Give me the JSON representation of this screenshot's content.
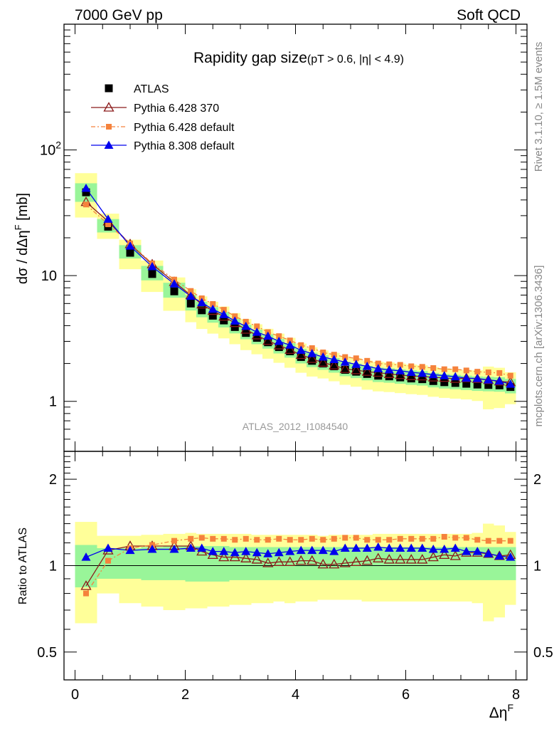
{
  "header": {
    "left": "7000 GeV pp",
    "right": "Soft QCD"
  },
  "side_text": {
    "rivet": "Rivet 3.1.10, ≥ 1.5M events",
    "mcplots": "mcplots.cern.ch [arXiv:1306.3436]"
  },
  "colors": {
    "atlas": "#000000",
    "py6_370": "#8b1a1a",
    "py6_default": "#f5823c",
    "py8": "#0000ee",
    "band_inner": "#99f599",
    "band_outer": "#ffff99"
  },
  "chart_data": {
    "type": "line",
    "title": "Rapidity gap size",
    "title_cuts": "(pT > 0.6, |η| < 4.9)",
    "watermark": "ATLAS_2012_I1084540",
    "xlabel": "Δη",
    "xlabel_sup": "F",
    "ylabel": "dσ / dΔη",
    "ylabel_sup": "F",
    "ylabel_unit": " [mb]",
    "ratio_ylabel": "Ratio to ATLAS",
    "xlim": [
      -0.2,
      8.2
    ],
    "ylim": [
      0.4,
      1000
    ],
    "yscale": "log",
    "ratio_ylim": [
      0.4,
      2.5
    ],
    "ratio_yscale": "log",
    "x_ticks": [
      0,
      2,
      4,
      6,
      8
    ],
    "y_ticks": [
      {
        "v": 1,
        "label": "1"
      },
      {
        "v": 10,
        "label": "10"
      },
      {
        "v": 100,
        "label": "10",
        "sup": "2"
      }
    ],
    "ratio_ticks": [
      {
        "v": 0.5,
        "label": "0.5"
      },
      {
        "v": 1,
        "label": "1"
      },
      {
        "v": 2,
        "label": "2"
      }
    ],
    "legend_position": "top-left",
    "x": [
      0.2,
      0.6,
      1.0,
      1.4,
      1.8,
      2.1,
      2.3,
      2.5,
      2.7,
      2.9,
      3.1,
      3.3,
      3.5,
      3.7,
      3.9,
      4.1,
      4.3,
      4.5,
      4.7,
      4.9,
      5.1,
      5.3,
      5.5,
      5.7,
      5.9,
      6.1,
      6.3,
      6.5,
      6.7,
      6.9,
      7.1,
      7.3,
      7.5,
      7.7,
      7.9
    ],
    "bin_edges": [
      0.0,
      0.4,
      0.8,
      1.2,
      1.6,
      2.0,
      2.2,
      2.4,
      2.6,
      2.8,
      3.0,
      3.2,
      3.4,
      3.6,
      3.8,
      4.0,
      4.2,
      4.4,
      4.6,
      4.8,
      5.0,
      5.2,
      5.4,
      5.6,
      5.8,
      6.0,
      6.2,
      6.4,
      6.6,
      6.8,
      7.0,
      7.2,
      7.4,
      7.6,
      7.8,
      8.0
    ],
    "series": [
      {
        "name": "ATLAS",
        "marker": "square",
        "values": [
          46,
          24.5,
          15.2,
          10.3,
          7.5,
          6.0,
          5.3,
          4.8,
          4.4,
          3.9,
          3.5,
          3.2,
          2.95,
          2.7,
          2.5,
          2.25,
          2.1,
          2.0,
          1.9,
          1.78,
          1.72,
          1.65,
          1.6,
          1.58,
          1.55,
          1.52,
          1.5,
          1.45,
          1.42,
          1.4,
          1.38,
          1.36,
          1.35,
          1.34,
          1.3
        ],
        "band_inner": [
          [
            0.84,
            1.18
          ],
          [
            0.9,
            1.15
          ],
          [
            0.9,
            1.15
          ],
          [
            0.89,
            1.16
          ],
          [
            0.89,
            1.17
          ],
          [
            0.88,
            1.17
          ],
          [
            0.88,
            1.17
          ],
          [
            0.88,
            1.17
          ],
          [
            0.88,
            1.17
          ],
          [
            0.89,
            1.16
          ],
          [
            0.89,
            1.16
          ],
          [
            0.89,
            1.16
          ],
          [
            0.89,
            1.16
          ],
          [
            0.89,
            1.16
          ],
          [
            0.89,
            1.16
          ],
          [
            0.89,
            1.16
          ],
          [
            0.89,
            1.16
          ],
          [
            0.89,
            1.16
          ],
          [
            0.89,
            1.16
          ],
          [
            0.89,
            1.16
          ],
          [
            0.89,
            1.16
          ],
          [
            0.89,
            1.16
          ],
          [
            0.89,
            1.16
          ],
          [
            0.89,
            1.16
          ],
          [
            0.89,
            1.16
          ],
          [
            0.89,
            1.16
          ],
          [
            0.89,
            1.16
          ],
          [
            0.89,
            1.16
          ],
          [
            0.89,
            1.16
          ],
          [
            0.89,
            1.16
          ],
          [
            0.89,
            1.16
          ],
          [
            0.89,
            1.16
          ],
          [
            0.89,
            1.16
          ],
          [
            0.89,
            1.16
          ],
          [
            0.89,
            1.16
          ]
        ],
        "band_outer": [
          [
            0.63,
            1.42
          ],
          [
            0.8,
            1.27
          ],
          [
            0.74,
            1.27
          ],
          [
            0.72,
            1.28
          ],
          [
            0.7,
            1.29
          ],
          [
            0.71,
            1.3
          ],
          [
            0.71,
            1.29
          ],
          [
            0.72,
            1.29
          ],
          [
            0.72,
            1.29
          ],
          [
            0.73,
            1.29
          ],
          [
            0.73,
            1.29
          ],
          [
            0.74,
            1.28
          ],
          [
            0.74,
            1.28
          ],
          [
            0.75,
            1.28
          ],
          [
            0.74,
            1.28
          ],
          [
            0.75,
            1.28
          ],
          [
            0.75,
            1.28
          ],
          [
            0.76,
            1.27
          ],
          [
            0.76,
            1.28
          ],
          [
            0.76,
            1.28
          ],
          [
            0.76,
            1.28
          ],
          [
            0.75,
            1.28
          ],
          [
            0.75,
            1.29
          ],
          [
            0.75,
            1.29
          ],
          [
            0.75,
            1.29
          ],
          [
            0.75,
            1.29
          ],
          [
            0.75,
            1.29
          ],
          [
            0.75,
            1.29
          ],
          [
            0.75,
            1.29
          ],
          [
            0.75,
            1.29
          ],
          [
            0.75,
            1.29
          ],
          [
            0.74,
            1.3
          ],
          [
            0.64,
            1.4
          ],
          [
            0.66,
            1.38
          ],
          [
            0.73,
            1.31
          ]
        ]
      },
      {
        "name": "Pythia 6.428 370",
        "marker": "open-triangle",
        "values": [
          38.5,
          27.0,
          17.8,
          12.3,
          8.9,
          7.0,
          5.9,
          5.25,
          4.72,
          4.2,
          3.72,
          3.35,
          3.03,
          2.79,
          2.57,
          2.34,
          2.18,
          2.03,
          1.93,
          1.81,
          1.77,
          1.72,
          1.69,
          1.65,
          1.62,
          1.59,
          1.58,
          1.55,
          1.54,
          1.51,
          1.53,
          1.51,
          1.48,
          1.44,
          1.42
        ],
        "ratio": [
          0.85,
          1.13,
          1.17,
          1.17,
          1.17,
          1.17,
          1.12,
          1.09,
          1.07,
          1.07,
          1.06,
          1.05,
          1.02,
          1.03,
          1.03,
          1.04,
          1.04,
          1.01,
          1.01,
          1.02,
          1.03,
          1.04,
          1.06,
          1.05,
          1.05,
          1.05,
          1.05,
          1.07,
          1.09,
          1.08,
          1.11,
          1.11,
          1.1,
          1.08,
          1.09
        ]
      },
      {
        "name": "Pythia 6.428 default",
        "marker": "filled-square-small",
        "values": [
          36.8,
          25.6,
          18.0,
          12.5,
          9.3,
          7.55,
          6.6,
          5.95,
          5.35,
          4.75,
          4.3,
          3.95,
          3.55,
          3.3,
          3.05,
          2.8,
          2.65,
          2.45,
          2.35,
          2.25,
          2.2,
          2.1,
          2.0,
          1.97,
          1.95,
          1.9,
          1.88,
          1.84,
          1.8,
          1.8,
          1.76,
          1.72,
          1.7,
          1.68,
          1.6
        ],
        "ratio": [
          0.8,
          1.04,
          1.15,
          1.18,
          1.22,
          1.24,
          1.25,
          1.24,
          1.24,
          1.23,
          1.24,
          1.23,
          1.23,
          1.24,
          1.23,
          1.23,
          1.24,
          1.23,
          1.24,
          1.25,
          1.25,
          1.23,
          1.23,
          1.23,
          1.24,
          1.24,
          1.24,
          1.24,
          1.26,
          1.25,
          1.25,
          1.23,
          1.22,
          1.22,
          1.22
        ]
      },
      {
        "name": "Pythia 8.308 default",
        "marker": "filled-triangle",
        "values": [
          49.5,
          28.1,
          17.2,
          11.8,
          8.6,
          6.85,
          6.1,
          5.4,
          4.9,
          4.35,
          3.95,
          3.55,
          3.3,
          3.0,
          2.8,
          2.55,
          2.4,
          2.25,
          2.15,
          2.05,
          1.97,
          1.9,
          1.82,
          1.78,
          1.75,
          1.7,
          1.67,
          1.63,
          1.6,
          1.57,
          1.53,
          1.52,
          1.48,
          1.45,
          1.37
        ],
        "ratio": [
          1.07,
          1.15,
          1.13,
          1.14,
          1.14,
          1.15,
          1.15,
          1.12,
          1.12,
          1.11,
          1.12,
          1.11,
          1.1,
          1.11,
          1.12,
          1.13,
          1.13,
          1.13,
          1.12,
          1.15,
          1.15,
          1.15,
          1.16,
          1.15,
          1.15,
          1.15,
          1.15,
          1.14,
          1.14,
          1.15,
          1.12,
          1.12,
          1.1,
          1.08,
          1.07
        ]
      }
    ]
  }
}
